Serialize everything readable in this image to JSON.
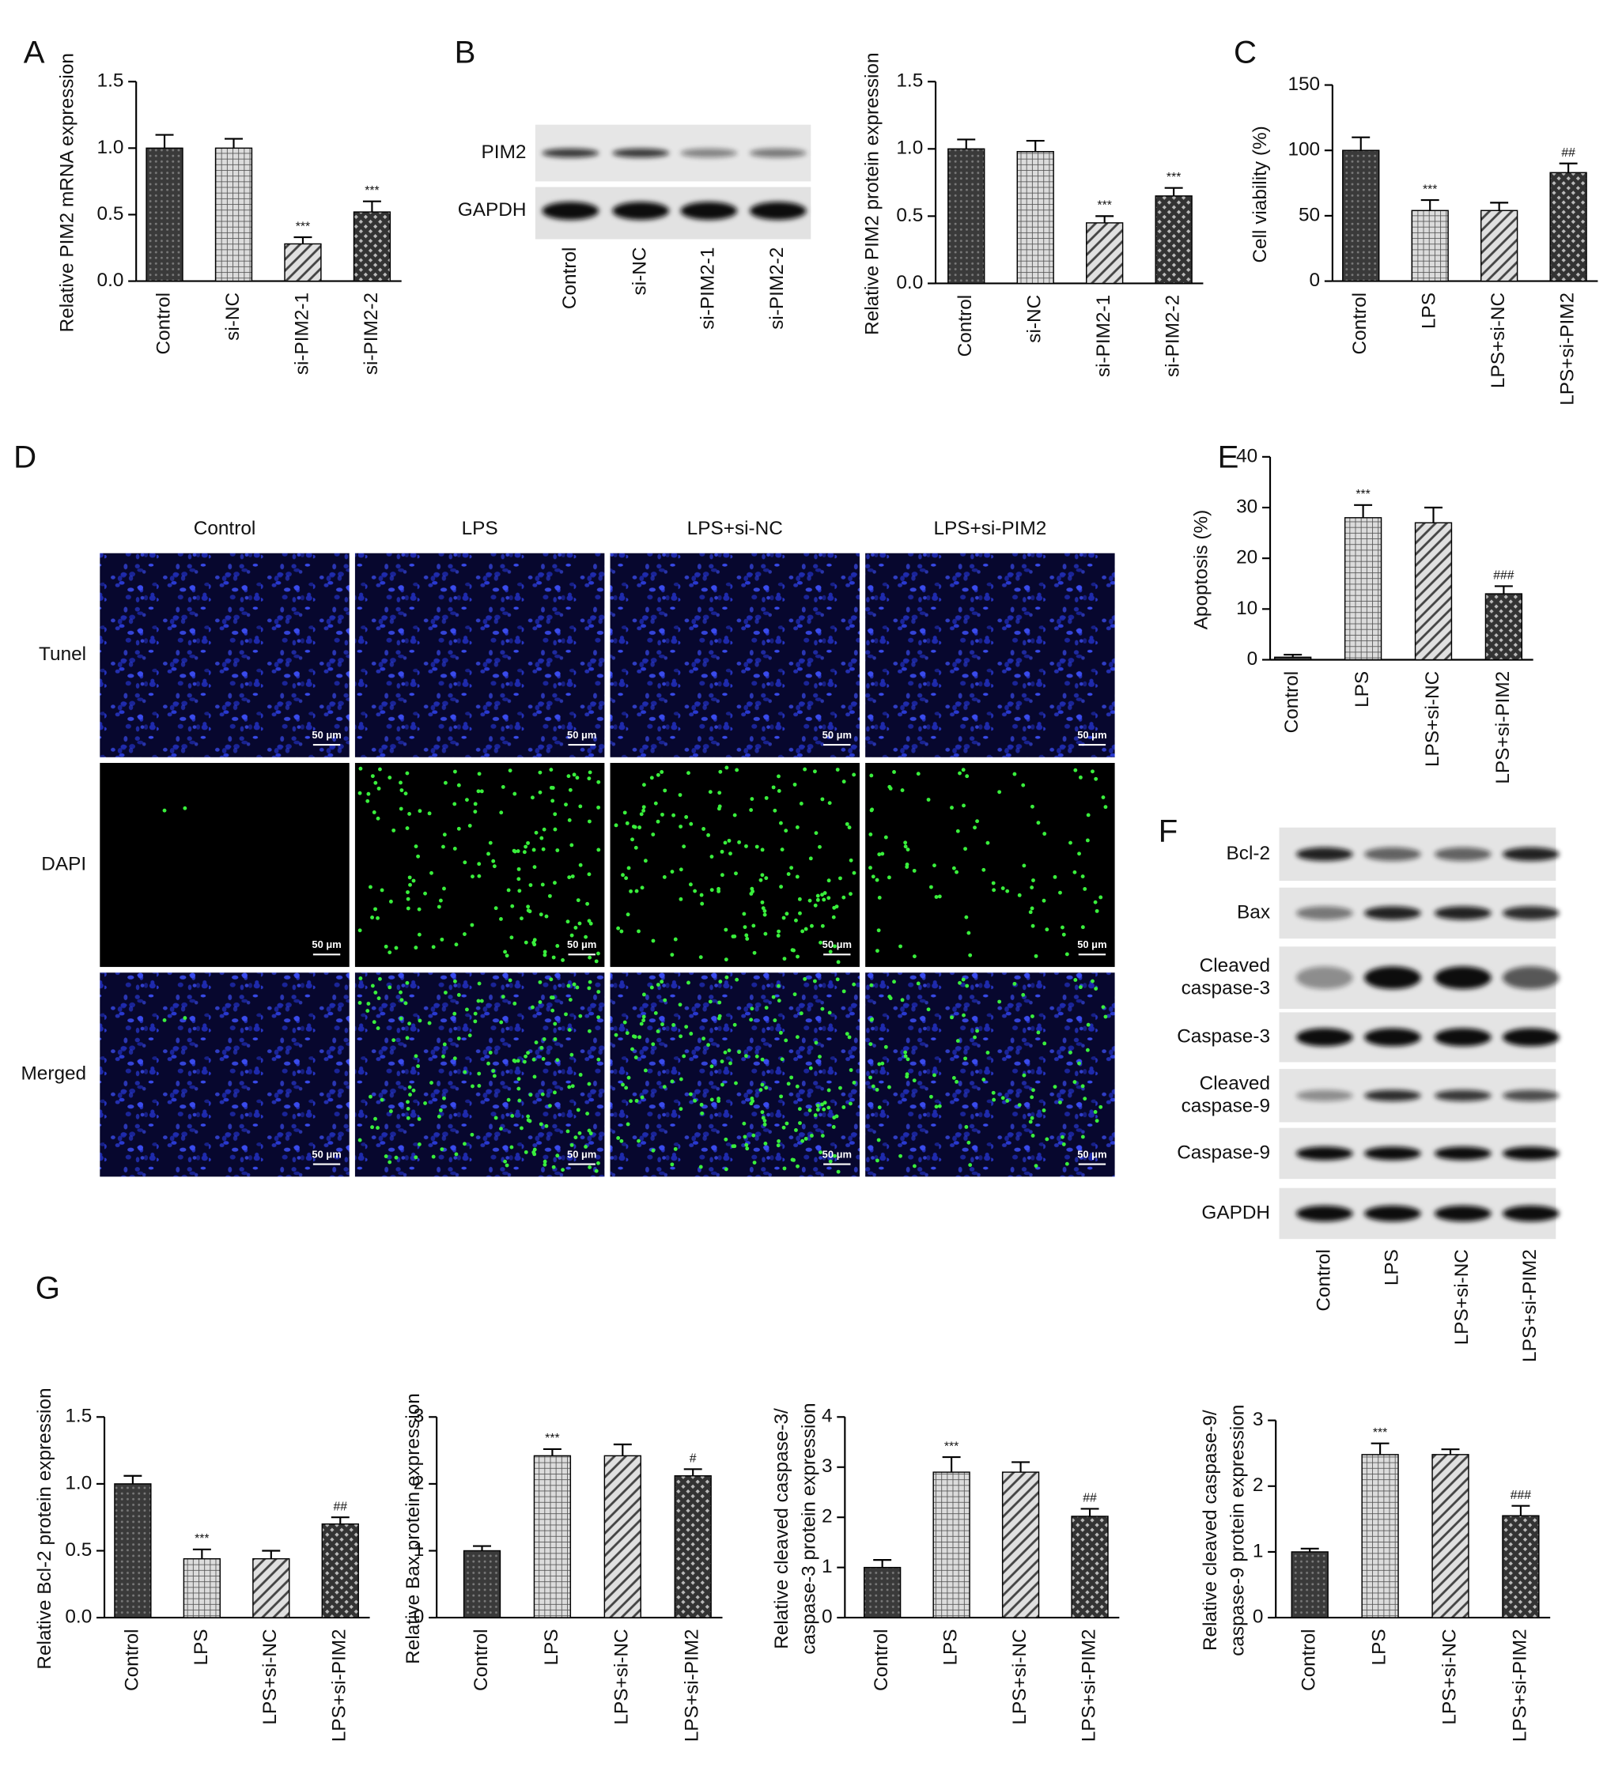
{
  "panel_labels": [
    "A",
    "B",
    "C",
    "D",
    "E",
    "F",
    "G"
  ],
  "chart_data": [
    {
      "type": "bar",
      "ylabel": "Relative PIM2 mRNA expression",
      "categories": [
        "Control",
        "si-NC",
        "si-PIM2-1",
        "si-PIM2-2"
      ],
      "values": [
        1.0,
        1.0,
        0.28,
        0.52
      ],
      "errors": [
        0.1,
        0.07,
        0.05,
        0.08
      ],
      "annotations": [
        null,
        null,
        "***",
        "***"
      ],
      "ylim": [
        0,
        1.5
      ],
      "yticks": [
        {
          "value": 0,
          "label": "0.0"
        },
        0.5,
        {
          "value": 1,
          "label": "1.0"
        },
        1.5
      ],
      "bar_styles": [
        "dots",
        "grid",
        "hatch",
        "cross"
      ]
    },
    {
      "type": "bar",
      "ylabel": "Relative PIM2  protein expression",
      "categories": [
        "Control",
        "si-NC",
        "si-PIM2-1",
        "si-PIM2-2"
      ],
      "values": [
        1.0,
        0.98,
        0.45,
        0.65
      ],
      "errors": [
        0.07,
        0.08,
        0.05,
        0.06
      ],
      "annotations": [
        null,
        null,
        "***",
        "***"
      ],
      "ylim": [
        0,
        1.5
      ],
      "yticks": [
        {
          "value": 0,
          "label": "0.0"
        },
        0.5,
        {
          "value": 1,
          "label": "1.0"
        },
        1.5
      ],
      "bar_styles": [
        "dots",
        "grid",
        "hatch",
        "cross"
      ]
    },
    {
      "type": "bar",
      "ylabel": "Cell viability (%)",
      "categories": [
        "Control",
        "LPS",
        "LPS+si-NC",
        "LPS+si-PIM2"
      ],
      "values": [
        100,
        54,
        54,
        83
      ],
      "errors": [
        10,
        8,
        6,
        7
      ],
      "annotations": [
        null,
        "***",
        null,
        "##"
      ],
      "ylim": [
        0,
        150
      ],
      "yticks": [
        0,
        50,
        100,
        150
      ],
      "bar_styles": [
        "dots",
        "grid",
        "hatch",
        "cross"
      ]
    },
    {
      "type": "bar",
      "ylabel": "Apoptosis (%)",
      "categories": [
        "Control",
        "LPS",
        "LPS+si-NC",
        "LPS+si-PIM2"
      ],
      "values": [
        0.5,
        28,
        27,
        13
      ],
      "errors": [
        0.5,
        2.5,
        3,
        1.5
      ],
      "annotations": [
        null,
        "***",
        null,
        "###"
      ],
      "ylim": [
        0,
        40
      ],
      "yticks": [
        0,
        10,
        20,
        30,
        40
      ],
      "bar_styles": [
        "dots",
        "grid",
        "hatch",
        "cross"
      ]
    },
    {
      "type": "bar",
      "ylabel": "Relative Bcl-2 protein expression",
      "categories": [
        "Control",
        "LPS",
        "LPS+si-NC",
        "LPS+si-PIM2"
      ],
      "values": [
        1.0,
        0.44,
        0.44,
        0.7
      ],
      "errors": [
        0.06,
        0.07,
        0.06,
        0.05
      ],
      "annotations": [
        null,
        "***",
        null,
        "##"
      ],
      "ylim": [
        0,
        1.5
      ],
      "yticks": [
        {
          "value": 0,
          "label": "0.0"
        },
        0.5,
        {
          "value": 1,
          "label": "1.0"
        },
        1.5
      ],
      "bar_styles": [
        "dots",
        "grid",
        "hatch",
        "cross"
      ]
    },
    {
      "type": "bar",
      "ylabel": "Relative Bax protein expression",
      "categories": [
        "Control",
        "LPS",
        "LPS+si-NC",
        "LPS+si-PIM2"
      ],
      "values": [
        1.0,
        2.42,
        2.42,
        2.12
      ],
      "errors": [
        0.07,
        0.1,
        0.17,
        0.1
      ],
      "annotations": [
        null,
        "***",
        null,
        "#"
      ],
      "ylim": [
        0,
        3
      ],
      "yticks": [
        0,
        1,
        2,
        3
      ],
      "bar_styles": [
        "dots",
        "grid",
        "hatch",
        "cross"
      ]
    },
    {
      "type": "bar",
      "ylabel": [
        "Relative cleaved caspase-3/",
        "caspase-3 protein expression"
      ],
      "categories": [
        "Control",
        "LPS",
        "LPS+si-NC",
        "LPS+si-PIM2"
      ],
      "values": [
        1.0,
        2.9,
        2.9,
        2.02
      ],
      "errors": [
        0.15,
        0.3,
        0.2,
        0.15
      ],
      "annotations": [
        null,
        "***",
        null,
        "##"
      ],
      "ylim": [
        0,
        4
      ],
      "yticks": [
        0,
        1,
        2,
        3,
        4
      ],
      "bar_styles": [
        "dots",
        "grid",
        "hatch",
        "cross"
      ]
    },
    {
      "type": "bar",
      "ylabel": [
        "Relative cleaved caspase-9/",
        "caspase-9 protein expression"
      ],
      "categories": [
        "Control",
        "LPS",
        "LPS+si-NC",
        "LPS+si-PIM2"
      ],
      "values": [
        1.0,
        2.48,
        2.48,
        1.55
      ],
      "errors": [
        0.05,
        0.17,
        0.08,
        0.15
      ],
      "annotations": [
        null,
        "***",
        null,
        "###"
      ],
      "ylim": [
        0,
        3
      ],
      "yticks": [
        0,
        1,
        2,
        3
      ],
      "bar_styles": [
        "dots",
        "grid",
        "hatch",
        "cross"
      ]
    }
  ],
  "blot_b": {
    "rows": [
      "PIM2",
      "GAPDH"
    ],
    "lanes": [
      "Control",
      "si-NC",
      "si-PIM2-1",
      "si-PIM2-2"
    ]
  },
  "microscopy": {
    "columns": [
      "Control",
      "LPS",
      "LPS+si-NC",
      "LPS+si-PIM2"
    ],
    "rows": [
      "Tunel",
      "DAPI",
      "Merged"
    ],
    "scale_bar": "50 μm"
  },
  "blot_f": {
    "rows": [
      [
        "Bcl-2"
      ],
      [
        "Bax"
      ],
      [
        "Cleaved",
        "caspase-3"
      ],
      [
        "Caspase-3"
      ],
      [
        "Cleaved",
        "caspase-9"
      ],
      [
        "Caspase-9"
      ],
      [
        "GAPDH"
      ]
    ],
    "lanes": [
      "Control",
      "LPS",
      "LPS+si-NC",
      "LPS+si-PIM2"
    ]
  }
}
